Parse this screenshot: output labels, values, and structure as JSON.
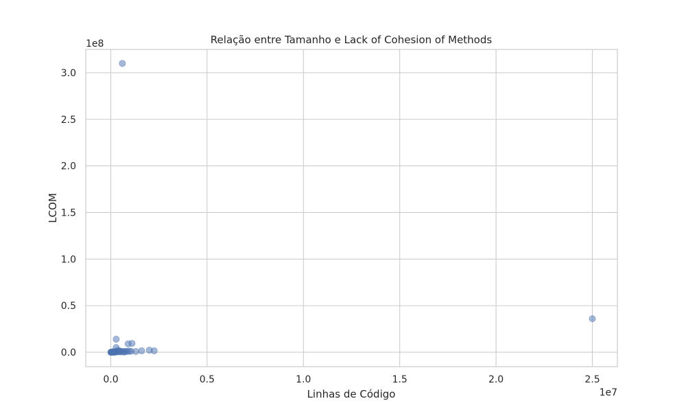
{
  "chart_data": {
    "type": "scatter",
    "title": "Relação entre Tamanho e Lack of Cohesion of Methods",
    "xlabel": "Linhas de Código",
    "ylabel": "LCOM",
    "x_offset_label": "1e7",
    "y_offset_label": "1e8",
    "x_scale": 10000000,
    "y_scale": 100000000,
    "xlim": [
      -1300000,
      26300000
    ],
    "ylim": [
      -15500000,
      325000000
    ],
    "x_ticks": [
      0,
      5000000,
      10000000,
      15000000,
      20000000,
      25000000
    ],
    "x_tick_labels": [
      "0.0",
      "0.5",
      "1.0",
      "1.5",
      "2.0",
      "2.5"
    ],
    "y_ticks": [
      0,
      50000000,
      100000000,
      150000000,
      200000000,
      250000000,
      300000000
    ],
    "y_tick_labels": [
      "0.0",
      "0.5",
      "1.0",
      "1.5",
      "2.0",
      "2.5",
      "3.0"
    ],
    "grid": true,
    "marker_color": "#4c72b0",
    "series": [
      {
        "points": [
          [
            600000,
            310000000
          ],
          [
            25000000,
            36000000
          ],
          [
            280000,
            14000000
          ],
          [
            1100000,
            9500000
          ],
          [
            900000,
            9000000
          ],
          [
            280000,
            5000000
          ],
          [
            2000000,
            2200000
          ],
          [
            2250000,
            1500000
          ],
          [
            1600000,
            1500000
          ],
          [
            1300000,
            800000
          ],
          [
            1050000,
            1000000
          ],
          [
            950000,
            1200000
          ],
          [
            850000,
            800000
          ],
          [
            750000,
            1000000
          ],
          [
            650000,
            700000
          ],
          [
            550000,
            900000
          ],
          [
            450000,
            1500000
          ],
          [
            400000,
            600000
          ],
          [
            350000,
            2000000
          ],
          [
            300000,
            300000
          ],
          [
            250000,
            200000
          ],
          [
            200000,
            500000
          ],
          [
            150000,
            100000
          ],
          [
            100000,
            200000
          ],
          [
            60000,
            50000
          ],
          [
            30000,
            20000
          ],
          [
            10000,
            10000
          ],
          [
            5000,
            5000
          ],
          [
            80000,
            400000
          ],
          [
            120000,
            300000
          ],
          [
            180000,
            150000
          ],
          [
            500000,
            300000
          ],
          [
            700000,
            200000
          ]
        ]
      }
    ]
  }
}
